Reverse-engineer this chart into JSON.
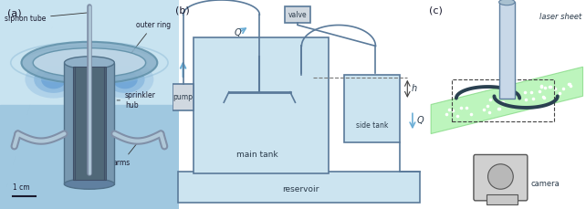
{
  "panel_a": {
    "label": "(a)",
    "labels": {
      "siphon_tube": "siphon tube",
      "outer_ring": "outer ring",
      "sprinkler_hub": "sprinkler\nhub",
      "arms": "arms",
      "scale": "1 cm"
    }
  },
  "panel_b": {
    "label": "(b)",
    "labels": {
      "pump": "pump",
      "valve": "valve",
      "Q_top": "Q",
      "Q_bottom": "Q",
      "h": "h",
      "main_tank": "main tank",
      "side_tank": "side tank",
      "reservoir": "reservoir"
    }
  },
  "panel_c": {
    "label": "(c)",
    "labels": {
      "laser_sheet": "laser sheet",
      "camera": "camera"
    },
    "laser_color": "#90ee90"
  },
  "figure_bg": "#ffffff",
  "blue_water": "#cce4f0",
  "line_color": "#5a7a9a",
  "arrow_color": "#6baed6",
  "hub_outer_color": "#7898b0",
  "hub_edge_color": "#507088",
  "hub_inner_color": "#506878",
  "hub_inner_edge": "#405068",
  "ring_face": "#8ab0c8",
  "ring_edge": "#6090a8",
  "ring_inner_face": "#c0d8e8",
  "arm_dark": "#8090a8",
  "arm_light": "#b0c8d8",
  "bg_top": "#c8e3f0",
  "bg_bot": "#a0c8e0",
  "text_dark": "#1a1a2e",
  "text_mid": "#2a3a4a"
}
